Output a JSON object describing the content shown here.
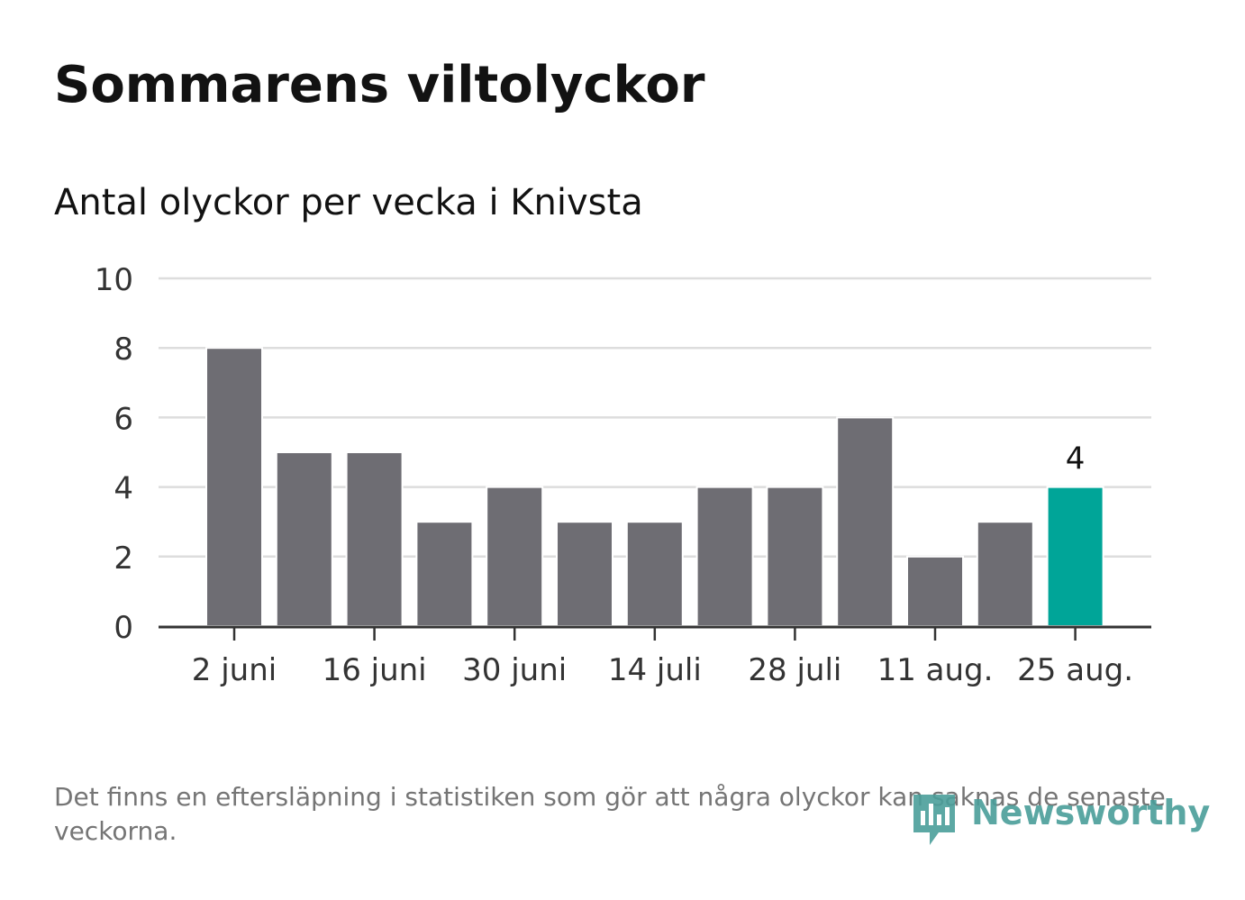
{
  "title": "Sommarens viltolyckor",
  "subtitle": "Antal olyckor per vecka i Knivsta",
  "footnote": "Det finns en eftersläpning i statistiken som gör att några olyckor kan saknas de senaste veckorna.",
  "logo": {
    "text": "Newsworthy",
    "icon": "newsworthy-bar-chart-icon",
    "color": "#4a9e9a"
  },
  "colors": {
    "bar": "#6e6d73",
    "highlight": "#00a598",
    "grid": "#dddddd",
    "axis": "#333333"
  },
  "chart_data": {
    "type": "bar",
    "title": "Antal olyckor per vecka i Knivsta",
    "xlabel": "",
    "ylabel": "",
    "ylim": [
      0,
      10
    ],
    "yticks": [
      "0",
      "2",
      "4",
      "6",
      "8",
      "10"
    ],
    "grid": true,
    "weeks": 13,
    "values": [
      8,
      5,
      5,
      3,
      4,
      3,
      3,
      4,
      4,
      6,
      2,
      3,
      4
    ],
    "xtick_labels": [
      {
        "week": 0,
        "label": "2 juni"
      },
      {
        "week": 2,
        "label": "16 juni"
      },
      {
        "week": 4,
        "label": "30 juni"
      },
      {
        "week": 6,
        "label": "14 juli"
      },
      {
        "week": 8,
        "label": "28 juli"
      },
      {
        "week": 10,
        "label": "11 aug."
      },
      {
        "week": 12,
        "label": "25 aug."
      }
    ],
    "highlight_index": 12,
    "data_labels": [
      {
        "index": 12,
        "text": "4"
      }
    ]
  }
}
